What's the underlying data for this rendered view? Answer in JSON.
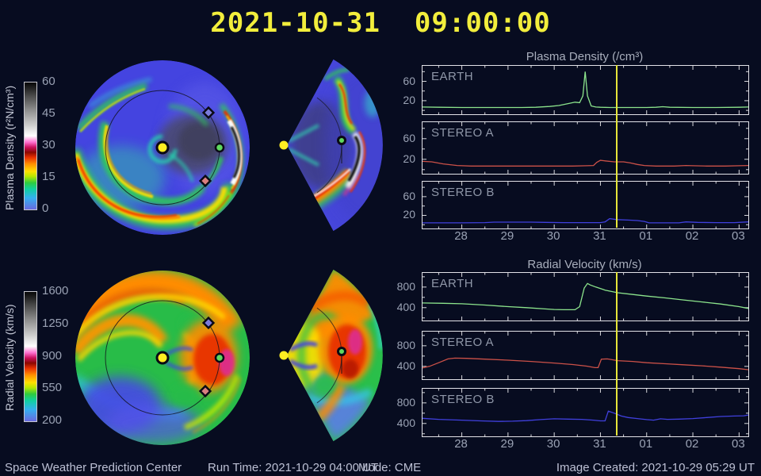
{
  "title": "2021-10-31  09:00:00",
  "colors": {
    "background": "#070c20",
    "title_yellow": "#f2ee3c",
    "frame": "#e2e2e8",
    "axis_text": "#9aa2b4",
    "marker_line": "#e6e63a",
    "earth_line": "#8ce48c",
    "stereo_a_line": "#cc5148",
    "stereo_b_line": "#4040dd"
  },
  "colormap_stops": [
    "#6a6ae0 0%",
    "#35b0f0 9%",
    "#10d0a0 16%",
    "#2ecc40 21%",
    "#b8e800 26%",
    "#ffe000 30%",
    "#ff8c00 36%",
    "#e83000 41%",
    "#8c0800 45%",
    "#cc1060 49%",
    "#ff70d0 53%",
    "#ffffff 58%",
    "#d0d0d0 66%",
    "#909090 78%",
    "#484848 90%",
    "#060606 100%"
  ],
  "colorbars": [
    {
      "label": "Plasma Density (r²N/cm³)",
      "ticks": [
        "60",
        "45",
        "30",
        "15",
        "0"
      ]
    },
    {
      "label": "Radial Velocity (km/s)",
      "ticks": [
        "1600",
        "1250",
        "900",
        "550",
        "200"
      ]
    }
  ],
  "footer": {
    "left": "Space Weather Prediction Center",
    "run_time": "Run Time: 2021-10-29 04:00 UT",
    "mode": "Mode: CME",
    "right": "Image Created: 2021-10-29 05:29 UT"
  },
  "chart_data": [
    {
      "type": "line",
      "title": "Plasma Density (/cm³)",
      "x_tick_labels": [
        "28",
        "29",
        "30",
        "31",
        "01",
        "02",
        "03"
      ],
      "x_ticks": [
        28,
        29,
        30,
        31,
        32,
        33,
        34
      ],
      "x_range": [
        27.15,
        34.2
      ],
      "y_range": [
        -8,
        92
      ],
      "y_ticks": [
        20,
        60
      ],
      "y_minor_ticks": [
        0,
        40,
        80
      ],
      "marker_day": 31.375,
      "marker_color": "#e6e63a",
      "legend_position": "inside-top-left",
      "series": [
        {
          "name": "EARTH",
          "color": "#8ce48c",
          "x": [
            27.15,
            27.5,
            28,
            28.5,
            29,
            29.3,
            29.6,
            29.9,
            30.1,
            30.3,
            30.45,
            30.55,
            30.62,
            30.67,
            30.72,
            30.8,
            30.9,
            31.0,
            31.2,
            31.375,
            31.6,
            32.0,
            32.2,
            32.35,
            32.5,
            33.0,
            33.5,
            34.0,
            34.2
          ],
          "y": [
            7,
            6.5,
            6,
            6,
            6,
            6,
            6.5,
            8,
            10,
            14,
            17,
            16,
            30,
            80,
            30,
            9,
            7,
            6.5,
            6,
            6,
            6,
            6,
            6.5,
            7.5,
            6.5,
            6,
            6,
            6.5,
            7
          ]
        },
        {
          "name": "STEREO A",
          "color": "#cc5148",
          "x": [
            27.15,
            27.35,
            27.6,
            27.9,
            28.2,
            28.6,
            29,
            29.5,
            30,
            30.4,
            30.7,
            30.85,
            30.92,
            31.0,
            31.1,
            31.3,
            31.5,
            31.65,
            31.8,
            31.95,
            32.2,
            32.6,
            32.85,
            33.0,
            33.3,
            33.7,
            34.0,
            34.2
          ],
          "y": [
            16,
            15,
            11,
            8,
            7,
            7,
            7,
            7,
            7,
            7,
            7.5,
            8,
            14,
            18,
            17,
            15,
            15,
            13,
            10,
            8,
            7,
            7,
            8,
            7.5,
            7,
            7,
            7.5,
            8
          ]
        },
        {
          "name": "STEREO B",
          "color": "#4040dd",
          "x": [
            27.15,
            28,
            28.5,
            28.7,
            29,
            29.5,
            29.8,
            30.2,
            30.6,
            31.0,
            31.1,
            31.2,
            31.35,
            31.6,
            31.8,
            31.95,
            32.05,
            32.4,
            32.7,
            32.85,
            33.1,
            33.5,
            33.9,
            34.2
          ],
          "y": [
            4,
            4,
            4.5,
            5.5,
            5.5,
            5.5,
            5,
            4.5,
            4.5,
            4.5,
            6,
            13,
            11,
            10,
            9,
            7,
            4,
            4,
            4,
            6,
            5,
            4.5,
            4.5,
            6
          ]
        }
      ]
    },
    {
      "type": "line",
      "title": "Radial Velocity (km/s)",
      "x_tick_labels": [
        "28",
        "29",
        "30",
        "31",
        "01",
        "02",
        "03"
      ],
      "x_ticks": [
        28,
        29,
        30,
        31,
        32,
        33,
        34
      ],
      "x_range": [
        27.15,
        34.2
      ],
      "y_range": [
        150,
        1075
      ],
      "y_ticks": [
        400,
        800
      ],
      "y_minor_ticks": [
        200,
        600,
        1000
      ],
      "marker_day": 31.375,
      "marker_color": "#e6e63a",
      "legend_position": "inside-top-left",
      "series": [
        {
          "name": "EARTH",
          "color": "#8ce48c",
          "x": [
            27.15,
            27.6,
            28,
            28.5,
            29,
            29.4,
            29.8,
            30.0,
            30.2,
            30.45,
            30.55,
            30.65,
            30.72,
            30.78,
            30.9,
            31.1,
            31.375,
            31.7,
            32.0,
            32.4,
            32.8,
            33.2,
            33.6,
            34.0,
            34.2
          ],
          "y": [
            490,
            485,
            475,
            450,
            420,
            400,
            375,
            365,
            360,
            360,
            420,
            780,
            870,
            840,
            800,
            740,
            690,
            655,
            625,
            590,
            550,
            510,
            470,
            420,
            385
          ]
        },
        {
          "name": "STEREO A",
          "color": "#cc5148",
          "x": [
            27.15,
            27.3,
            27.5,
            27.7,
            27.85,
            28.1,
            28.5,
            29,
            29.5,
            30,
            30.4,
            30.7,
            30.88,
            30.95,
            31.02,
            31.15,
            31.375,
            31.7,
            32.0,
            32.4,
            32.8,
            33.2,
            33.6,
            34.0,
            34.2
          ],
          "y": [
            370,
            400,
            470,
            545,
            560,
            555,
            540,
            520,
            495,
            465,
            435,
            405,
            375,
            375,
            540,
            545,
            510,
            495,
            470,
            450,
            430,
            410,
            385,
            355,
            335
          ]
        },
        {
          "name": "STEREO B",
          "color": "#4040dd",
          "x": [
            27.15,
            27.5,
            28,
            28.4,
            28.8,
            29.1,
            29.4,
            29.7,
            30.0,
            30.3,
            30.6,
            30.85,
            31.0,
            31.1,
            31.17,
            31.3,
            31.45,
            31.6,
            31.8,
            32.0,
            32.15,
            32.3,
            32.45,
            32.7,
            33.0,
            33.3,
            33.6,
            33.9,
            34.1,
            34.2
          ],
          "y": [
            500,
            480,
            465,
            450,
            440,
            445,
            455,
            475,
            490,
            485,
            480,
            465,
            450,
            450,
            640,
            600,
            545,
            515,
            495,
            475,
            465,
            490,
            480,
            485,
            495,
            515,
            535,
            545,
            550,
            565
          ]
        }
      ]
    }
  ]
}
